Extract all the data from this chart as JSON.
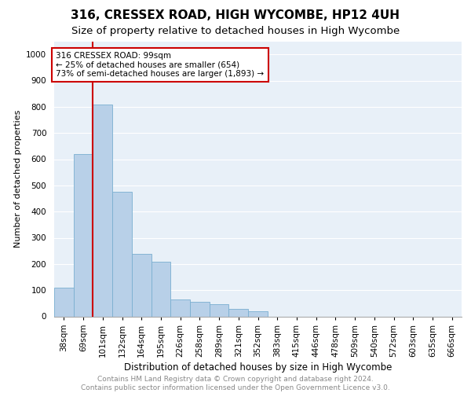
{
  "title": "316, CRESSEX ROAD, HIGH WYCOMBE, HP12 4UH",
  "subtitle": "Size of property relative to detached houses in High Wycombe",
  "xlabel": "Distribution of detached houses by size in High Wycombe",
  "ylabel": "Number of detached properties",
  "categories": [
    "38sqm",
    "69sqm",
    "101sqm",
    "132sqm",
    "164sqm",
    "195sqm",
    "226sqm",
    "258sqm",
    "289sqm",
    "321sqm",
    "352sqm",
    "383sqm",
    "415sqm",
    "446sqm",
    "478sqm",
    "509sqm",
    "540sqm",
    "572sqm",
    "603sqm",
    "635sqm",
    "666sqm"
  ],
  "values": [
    110,
    620,
    810,
    475,
    240,
    210,
    65,
    55,
    48,
    30,
    20,
    0,
    0,
    0,
    0,
    0,
    0,
    0,
    0,
    0,
    0
  ],
  "bar_color": "#b8d0e8",
  "bar_edge_color": "#7aafd0",
  "vline_color": "#cc0000",
  "annotation_text": "316 CRESSEX ROAD: 99sqm\n← 25% of detached houses are smaller (654)\n73% of semi-detached houses are larger (1,893) →",
  "annotation_box_facecolor": "white",
  "annotation_box_edgecolor": "#cc0000",
  "ylim": [
    0,
    1050
  ],
  "yticks": [
    0,
    100,
    200,
    300,
    400,
    500,
    600,
    700,
    800,
    900,
    1000
  ],
  "bg_color": "#dce8f5",
  "plot_bg_color": "#e8f0f8",
  "footer_text": "Contains HM Land Registry data © Crown copyright and database right 2024.\nContains public sector information licensed under the Open Government Licence v3.0.",
  "title_fontsize": 11,
  "subtitle_fontsize": 9.5,
  "xlabel_fontsize": 8.5,
  "ylabel_fontsize": 8,
  "tick_fontsize": 7.5,
  "footer_fontsize": 6.5
}
